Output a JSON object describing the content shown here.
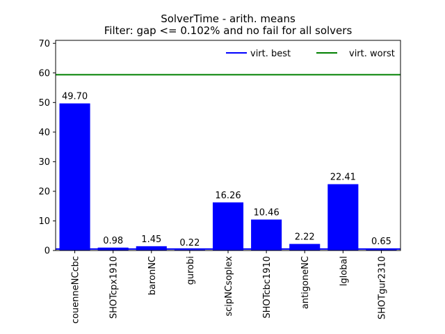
{
  "chart_data": {
    "type": "bar",
    "title": "SolverTime - arith. means",
    "subtitle": "Filter: gap <= 0.102% and no fail for all solvers",
    "xlabel": "",
    "ylabel": "",
    "categories": [
      "couenneNCcbc",
      "SHOTcpx1910",
      "baronNC",
      "gurobi",
      "scipNCsoplex",
      "SHOTcbc1910",
      "antigoneNC",
      "lglobal",
      "SHOTgur2310"
    ],
    "values": [
      49.7,
      0.98,
      1.45,
      0.22,
      16.26,
      10.46,
      2.22,
      22.41,
      0.65
    ],
    "value_labels": [
      "49.70",
      "0.98",
      "1.45",
      "0.22",
      "16.26",
      "10.46",
      "2.22",
      "22.41",
      "0.65"
    ],
    "ylim": [
      0,
      71
    ],
    "yticks": [
      0,
      10,
      20,
      30,
      40,
      50,
      60,
      70
    ],
    "bar_color": "#0000ff",
    "lines": [
      {
        "name": "virt. best",
        "value": 0.5,
        "color": "#0000ff"
      },
      {
        "name": "virt. worst",
        "value": 59.4,
        "color": "#008000"
      }
    ],
    "legend": {
      "placement": "top-right"
    },
    "grid": false
  }
}
